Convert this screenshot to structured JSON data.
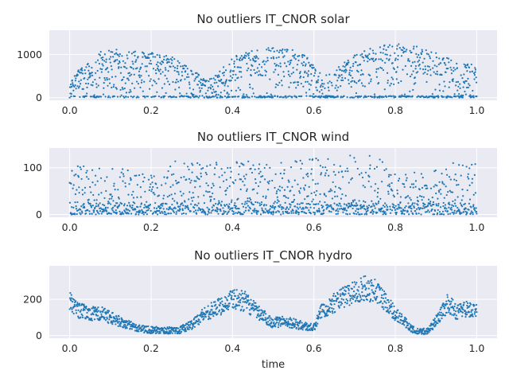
{
  "chart_data": [
    {
      "type": "scatter",
      "title": "No outliers IT_CNOR solar",
      "xlabel": "",
      "ylabel": "",
      "xlim": [
        -0.05,
        1.05
      ],
      "ylim": [
        -60,
        1560
      ],
      "xticks": [
        0.0,
        0.2,
        0.4,
        0.6,
        0.8,
        1.0
      ],
      "xtick_labels": [
        "0.0",
        "0.2",
        "0.4",
        "0.6",
        "0.8",
        "1.0"
      ],
      "yticks": [
        0,
        1000
      ],
      "ytick_labels": [
        "0",
        "1000"
      ],
      "grid": true,
      "color": "#1f77b4",
      "profile": "solar",
      "envelope": {
        "x": [
          0.0,
          0.02,
          0.05,
          0.09,
          0.12,
          0.2,
          0.25,
          0.3,
          0.34,
          0.37,
          0.4,
          0.45,
          0.5,
          0.55,
          0.6,
          0.62,
          0.65,
          0.7,
          0.75,
          0.8,
          0.85,
          0.9,
          0.95,
          1.0
        ],
        "y": [
          300,
          650,
          850,
          1200,
          1100,
          1050,
          950,
          650,
          420,
          620,
          950,
          1150,
          1150,
          1100,
          900,
          460,
          640,
          1000,
          1200,
          1250,
          1200,
          1050,
          820,
          760
        ]
      }
    },
    {
      "type": "scatter",
      "title": "No outliers IT_CNOR wind",
      "xlabel": "",
      "ylabel": "",
      "xlim": [
        -0.05,
        1.05
      ],
      "ylim": [
        -6,
        142
      ],
      "xticks": [
        0.0,
        0.2,
        0.4,
        0.6,
        0.8,
        1.0
      ],
      "xtick_labels": [
        "0.0",
        "0.2",
        "0.4",
        "0.6",
        "0.8",
        "1.0"
      ],
      "yticks": [
        0,
        100
      ],
      "ytick_labels": [
        "0",
        "100"
      ],
      "grid": true,
      "color": "#1f77b4",
      "profile": "wind",
      "envelope": {
        "x": [
          0.0,
          0.05,
          0.1,
          0.15,
          0.2,
          0.25,
          0.3,
          0.35,
          0.4,
          0.45,
          0.5,
          0.55,
          0.6,
          0.65,
          0.7,
          0.75,
          0.8,
          0.85,
          0.9,
          0.95,
          1.0
        ],
        "y": [
          120,
          110,
          100,
          105,
          85,
          115,
          120,
          110,
          125,
          110,
          115,
          120,
          120,
          125,
          130,
          125,
          95,
          90,
          100,
          120,
          130
        ]
      }
    },
    {
      "type": "scatter",
      "title": "No outliers IT_CNOR hydro",
      "xlabel": "time",
      "ylabel": "",
      "xlim": [
        -0.05,
        1.05
      ],
      "ylim": [
        -15,
        385
      ],
      "xticks": [
        0.0,
        0.2,
        0.4,
        0.6,
        0.8,
        1.0
      ],
      "xtick_labels": [
        "0.0",
        "0.2",
        "0.4",
        "0.6",
        "0.8",
        "1.0"
      ],
      "yticks": [
        0,
        200
      ],
      "ytick_labels": [
        "0",
        "200"
      ],
      "grid": true,
      "color": "#1f77b4",
      "profile": "hydro",
      "level": {
        "x": [
          0.0,
          0.02,
          0.05,
          0.08,
          0.1,
          0.13,
          0.16,
          0.2,
          0.24,
          0.27,
          0.3,
          0.33,
          0.36,
          0.4,
          0.43,
          0.46,
          0.5,
          0.53,
          0.56,
          0.6,
          0.62,
          0.65,
          0.68,
          0.72,
          0.75,
          0.78,
          0.8,
          0.83,
          0.85,
          0.88,
          0.9,
          0.93,
          0.95,
          0.97,
          1.0
        ],
        "y": [
          190,
          140,
          120,
          120,
          100,
          70,
          45,
          30,
          28,
          30,
          60,
          120,
          150,
          200,
          190,
          130,
          70,
          80,
          60,
          40,
          140,
          180,
          220,
          260,
          250,
          180,
          120,
          60,
          20,
          25,
          80,
          180,
          130,
          150,
          130
        ]
      }
    }
  ]
}
